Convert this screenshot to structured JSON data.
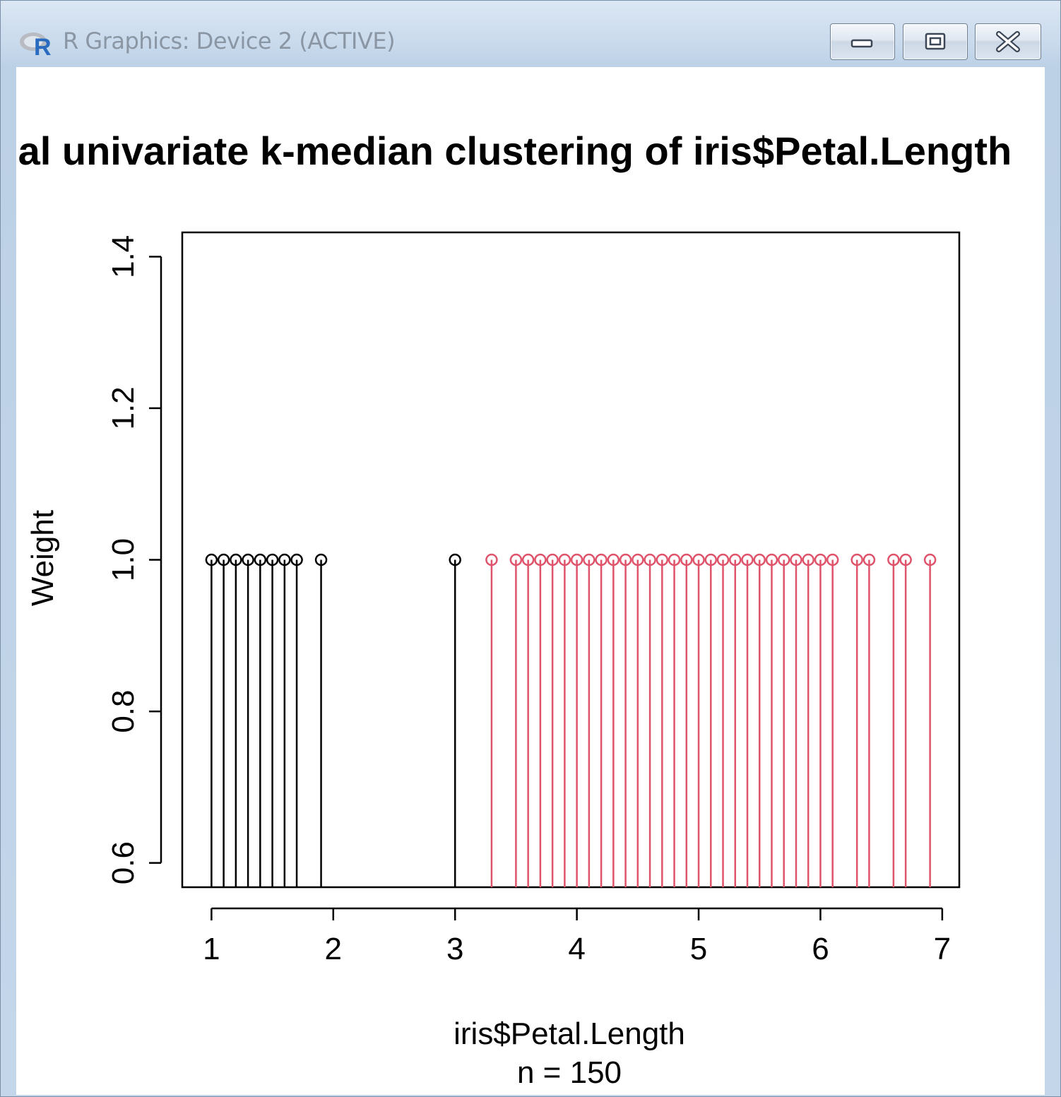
{
  "window": {
    "title": "R Graphics: Device 2 (ACTIVE)",
    "icon": "r-logo-icon",
    "controls": [
      "minimize-icon",
      "maximize-icon",
      "close-icon"
    ]
  },
  "chart_data": {
    "type": "stem",
    "title": "Optimal univariate k-median clustering of iris$Petal.Length",
    "xlabel": "iris$Petal.Length",
    "sublabel": "n = 150",
    "ylabel": "Weight",
    "xlim": [
      0.76,
      7.14
    ],
    "ylim": [
      0.568,
      1.432
    ],
    "xticks": [
      1,
      2,
      3,
      4,
      5,
      6,
      7
    ],
    "yticks": [
      0.6,
      0.8,
      1.0,
      1.2,
      1.4
    ],
    "ytick_labels": [
      "0.6",
      "0.8",
      "1.0",
      "1.2",
      "1.4"
    ],
    "grid": false,
    "series": [
      {
        "color": "#000000",
        "x": [
          1.0,
          1.1,
          1.2,
          1.3,
          1.4,
          1.5,
          1.6,
          1.7,
          1.9,
          3.0
        ],
        "y": [
          1,
          1,
          1,
          1,
          1,
          1,
          1,
          1,
          1,
          1
        ]
      },
      {
        "color": "#df536b",
        "x": [
          3.3,
          3.5,
          3.6,
          3.7,
          3.8,
          3.9,
          4.0,
          4.1,
          4.2,
          4.3,
          4.4,
          4.5,
          4.6,
          4.7,
          4.8,
          4.9,
          5.0,
          5.1,
          5.2,
          5.3,
          5.4,
          5.5,
          5.6,
          5.7,
          5.8,
          5.9,
          6.0,
          6.1,
          6.3,
          6.4,
          6.6,
          6.7,
          6.9
        ],
        "y": [
          1,
          1,
          1,
          1,
          1,
          1,
          1,
          1,
          1,
          1,
          1,
          1,
          1,
          1,
          1,
          1,
          1,
          1,
          1,
          1,
          1,
          1,
          1,
          1,
          1,
          1,
          1,
          1,
          1,
          1,
          1,
          1,
          1
        ]
      }
    ]
  }
}
